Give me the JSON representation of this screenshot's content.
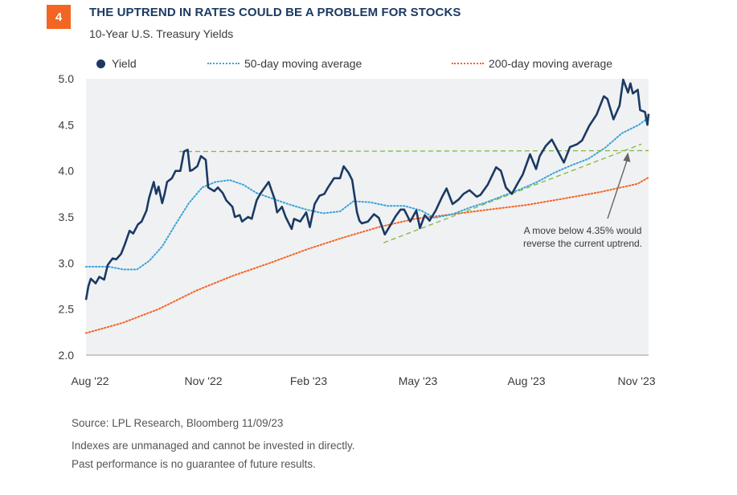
{
  "header": {
    "badge": "4",
    "title": "THE UPTREND IN RATES COULD BE A PROBLEM FOR STOCKS",
    "subtitle": "10-Year U.S. Treasury Yields"
  },
  "colors": {
    "badge": "#F26522",
    "title": "#1B3A63",
    "yield": "#1B3A63",
    "ma50": "#3BA4D8",
    "ma200": "#F26522",
    "trendline": "#7DBA3C",
    "plot_bg": "#F0F1F3"
  },
  "chart_data": {
    "type": "line",
    "title": "",
    "xlabel": "",
    "ylabel": "",
    "ylim": [
      2.0,
      5.0
    ],
    "y_ticks": [
      "5.0",
      "4.5",
      "4.0",
      "3.5",
      "3.0",
      "2.5",
      "2.0"
    ],
    "x_ticks": [
      "Aug '22",
      "Nov '22",
      "Feb '23",
      "May '23",
      "Aug '23",
      "Nov '23"
    ],
    "x_range": [
      "2022-08-01",
      "2023-11-09"
    ],
    "legend_position": "top",
    "series": [
      {
        "name": "Yield",
        "style": "solid",
        "points": [
          [
            "2022-08-01",
            2.6
          ],
          [
            "2022-08-03",
            2.75
          ],
          [
            "2022-08-05",
            2.83
          ],
          [
            "2022-08-09",
            2.78
          ],
          [
            "2022-08-12",
            2.85
          ],
          [
            "2022-08-16",
            2.82
          ],
          [
            "2022-08-19",
            2.98
          ],
          [
            "2022-08-23",
            3.05
          ],
          [
            "2022-08-26",
            3.04
          ],
          [
            "2022-08-30",
            3.1
          ],
          [
            "2022-09-02",
            3.2
          ],
          [
            "2022-09-06",
            3.35
          ],
          [
            "2022-09-09",
            3.32
          ],
          [
            "2022-09-13",
            3.42
          ],
          [
            "2022-09-16",
            3.45
          ],
          [
            "2022-09-20",
            3.57
          ],
          [
            "2022-09-22",
            3.7
          ],
          [
            "2022-09-26",
            3.88
          ],
          [
            "2022-09-28",
            3.75
          ],
          [
            "2022-09-30",
            3.83
          ],
          [
            "2022-10-03",
            3.65
          ],
          [
            "2022-10-05",
            3.75
          ],
          [
            "2022-10-07",
            3.88
          ],
          [
            "2022-10-11",
            3.92
          ],
          [
            "2022-10-14",
            4.0
          ],
          [
            "2022-10-18",
            4.0
          ],
          [
            "2022-10-21",
            4.21
          ],
          [
            "2022-10-24",
            4.23
          ],
          [
            "2022-10-26",
            4.0
          ],
          [
            "2022-10-28",
            4.01
          ],
          [
            "2022-11-01",
            4.05
          ],
          [
            "2022-11-04",
            4.16
          ],
          [
            "2022-11-08",
            4.12
          ],
          [
            "2022-11-10",
            3.82
          ],
          [
            "2022-11-15",
            3.78
          ],
          [
            "2022-11-18",
            3.82
          ],
          [
            "2022-11-22",
            3.76
          ],
          [
            "2022-11-25",
            3.68
          ],
          [
            "2022-11-30",
            3.61
          ],
          [
            "2022-12-02",
            3.5
          ],
          [
            "2022-12-06",
            3.52
          ],
          [
            "2022-12-08",
            3.45
          ],
          [
            "2022-12-13",
            3.5
          ],
          [
            "2022-12-16",
            3.48
          ],
          [
            "2022-12-20",
            3.68
          ],
          [
            "2022-12-23",
            3.75
          ],
          [
            "2022-12-30",
            3.88
          ],
          [
            "2023-01-04",
            3.69
          ],
          [
            "2023-01-06",
            3.55
          ],
          [
            "2023-01-10",
            3.61
          ],
          [
            "2023-01-13",
            3.5
          ],
          [
            "2023-01-18",
            3.37
          ],
          [
            "2023-01-20",
            3.48
          ],
          [
            "2023-01-25",
            3.45
          ],
          [
            "2023-01-30",
            3.55
          ],
          [
            "2023-02-02",
            3.39
          ],
          [
            "2023-02-06",
            3.64
          ],
          [
            "2023-02-10",
            3.73
          ],
          [
            "2023-02-14",
            3.75
          ],
          [
            "2023-02-17",
            3.82
          ],
          [
            "2023-02-22",
            3.92
          ],
          [
            "2023-02-27",
            3.92
          ],
          [
            "2023-03-02",
            4.05
          ],
          [
            "2023-03-06",
            3.98
          ],
          [
            "2023-03-09",
            3.9
          ],
          [
            "2023-03-13",
            3.55
          ],
          [
            "2023-03-15",
            3.46
          ],
          [
            "2023-03-17",
            3.43
          ],
          [
            "2023-03-22",
            3.45
          ],
          [
            "2023-03-27",
            3.53
          ],
          [
            "2023-03-31",
            3.49
          ],
          [
            "2023-04-05",
            3.31
          ],
          [
            "2023-04-10",
            3.42
          ],
          [
            "2023-04-14",
            3.51
          ],
          [
            "2023-04-18",
            3.58
          ],
          [
            "2023-04-21",
            3.58
          ],
          [
            "2023-04-26",
            3.45
          ],
          [
            "2023-05-01",
            3.57
          ],
          [
            "2023-05-04",
            3.38
          ],
          [
            "2023-05-08",
            3.52
          ],
          [
            "2023-05-12",
            3.46
          ],
          [
            "2023-05-17",
            3.57
          ],
          [
            "2023-05-22",
            3.71
          ],
          [
            "2023-05-26",
            3.81
          ],
          [
            "2023-05-31",
            3.64
          ],
          [
            "2023-06-05",
            3.69
          ],
          [
            "2023-06-09",
            3.75
          ],
          [
            "2023-06-14",
            3.79
          ],
          [
            "2023-06-20",
            3.72
          ],
          [
            "2023-06-23",
            3.74
          ],
          [
            "2023-06-29",
            3.85
          ],
          [
            "2023-07-06",
            4.04
          ],
          [
            "2023-07-10",
            4.0
          ],
          [
            "2023-07-14",
            3.82
          ],
          [
            "2023-07-19",
            3.75
          ],
          [
            "2023-07-24",
            3.87
          ],
          [
            "2023-07-28",
            3.96
          ],
          [
            "2023-08-03",
            4.18
          ],
          [
            "2023-08-08",
            4.02
          ],
          [
            "2023-08-11",
            4.16
          ],
          [
            "2023-08-16",
            4.27
          ],
          [
            "2023-08-21",
            4.34
          ],
          [
            "2023-08-25",
            4.24
          ],
          [
            "2023-08-31",
            4.09
          ],
          [
            "2023-09-05",
            4.26
          ],
          [
            "2023-09-11",
            4.29
          ],
          [
            "2023-09-15",
            4.33
          ],
          [
            "2023-09-21",
            4.49
          ],
          [
            "2023-09-27",
            4.61
          ],
          [
            "2023-10-03",
            4.81
          ],
          [
            "2023-10-06",
            4.78
          ],
          [
            "2023-10-11",
            4.56
          ],
          [
            "2023-10-16",
            4.71
          ],
          [
            "2023-10-19",
            4.99
          ],
          [
            "2023-10-23",
            4.85
          ],
          [
            "2023-10-25",
            4.95
          ],
          [
            "2023-10-27",
            4.84
          ],
          [
            "2023-10-31",
            4.88
          ],
          [
            "2023-11-02",
            4.66
          ],
          [
            "2023-11-06",
            4.64
          ],
          [
            "2023-11-08",
            4.5
          ],
          [
            "2023-11-09",
            4.62
          ]
        ]
      },
      {
        "name": "50-day moving average",
        "style": "dotted",
        "points": [
          [
            "2022-08-01",
            2.96
          ],
          [
            "2022-08-20",
            2.96
          ],
          [
            "2022-09-01",
            2.93
          ],
          [
            "2022-09-12",
            2.93
          ],
          [
            "2022-09-22",
            3.02
          ],
          [
            "2022-10-03",
            3.18
          ],
          [
            "2022-10-14",
            3.42
          ],
          [
            "2022-10-25",
            3.65
          ],
          [
            "2022-11-05",
            3.82
          ],
          [
            "2022-11-16",
            3.88
          ],
          [
            "2022-11-28",
            3.9
          ],
          [
            "2022-12-09",
            3.85
          ],
          [
            "2022-12-20",
            3.76
          ],
          [
            "2023-01-02",
            3.7
          ],
          [
            "2023-01-15",
            3.64
          ],
          [
            "2023-01-30",
            3.58
          ],
          [
            "2023-02-13",
            3.54
          ],
          [
            "2023-02-27",
            3.56
          ],
          [
            "2023-03-10",
            3.67
          ],
          [
            "2023-03-24",
            3.66
          ],
          [
            "2023-04-07",
            3.62
          ],
          [
            "2023-04-21",
            3.62
          ],
          [
            "2023-05-05",
            3.57
          ],
          [
            "2023-05-16",
            3.49
          ],
          [
            "2023-05-31",
            3.53
          ],
          [
            "2023-06-14",
            3.6
          ],
          [
            "2023-06-28",
            3.66
          ],
          [
            "2023-07-12",
            3.73
          ],
          [
            "2023-07-26",
            3.8
          ],
          [
            "2023-08-09",
            3.88
          ],
          [
            "2023-08-23",
            3.98
          ],
          [
            "2023-09-06",
            4.06
          ],
          [
            "2023-09-20",
            4.13
          ],
          [
            "2023-10-04",
            4.25
          ],
          [
            "2023-10-18",
            4.41
          ],
          [
            "2023-11-01",
            4.5
          ],
          [
            "2023-11-09",
            4.58
          ]
        ]
      },
      {
        "name": "200-day moving average",
        "style": "dotted",
        "points": [
          [
            "2022-08-01",
            2.24
          ],
          [
            "2022-08-31",
            2.35
          ],
          [
            "2022-09-30",
            2.5
          ],
          [
            "2022-10-31",
            2.7
          ],
          [
            "2022-11-30",
            2.86
          ],
          [
            "2022-12-31",
            3.0
          ],
          [
            "2023-01-31",
            3.15
          ],
          [
            "2023-02-28",
            3.27
          ],
          [
            "2023-03-31",
            3.39
          ],
          [
            "2023-04-30",
            3.48
          ],
          [
            "2023-05-31",
            3.53
          ],
          [
            "2023-06-30",
            3.58
          ],
          [
            "2023-07-31",
            3.63
          ],
          [
            "2023-08-31",
            3.7
          ],
          [
            "2023-09-30",
            3.77
          ],
          [
            "2023-10-31",
            3.86
          ],
          [
            "2023-11-09",
            3.93
          ]
        ]
      }
    ],
    "reference_lines": [
      {
        "from": [
          "2022-10-17",
          4.21
        ],
        "to": [
          "2023-11-09",
          4.22
        ],
        "style": "dashed"
      },
      {
        "from": [
          "2023-04-04",
          3.22
        ],
        "to": [
          "2023-11-03",
          4.29
        ],
        "style": "dashed"
      }
    ],
    "annotation": {
      "text_lines": [
        "A move below 4.35% would",
        "reverse the current uptrend."
      ],
      "arrow_target": [
        "2023-10-23",
        4.2
      ]
    }
  },
  "footer": {
    "source": "Source: LPL Research, Bloomberg  11/09/23",
    "disclaimer_1": "Indexes are unmanaged and cannot be invested in directly.",
    "disclaimer_2": "Past performance is no guarantee of future results."
  }
}
